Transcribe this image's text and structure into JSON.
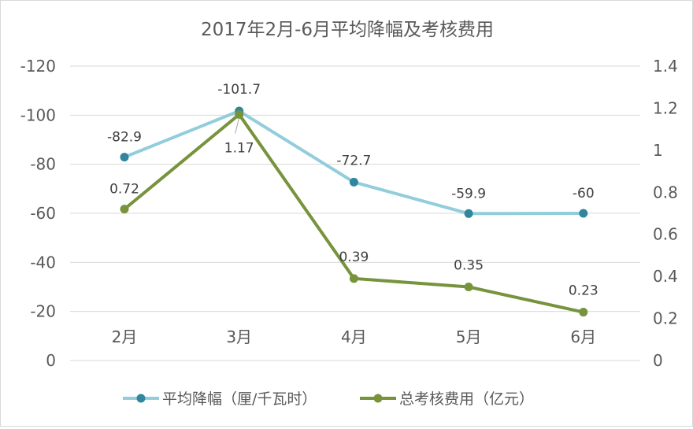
{
  "chart_data": {
    "type": "line",
    "title": "2017年2月-6月平均降幅及考核费用",
    "categories": [
      "2月",
      "3月",
      "4月",
      "5月",
      "6月"
    ],
    "series": [
      {
        "name": "平均降幅（厘/千瓦时）",
        "axis": "left",
        "values": [
          -82.9,
          -101.7,
          -72.7,
          -59.9,
          -60
        ],
        "labels": [
          "-82.9",
          "-101.7",
          "-72.7",
          "-59.9",
          "-60"
        ],
        "line_color": "#92CDDC",
        "marker_color": "#31859C"
      },
      {
        "name": "总考核费用（亿元）",
        "axis": "right",
        "values": [
          0.72,
          1.17,
          0.39,
          0.35,
          0.23
        ],
        "labels": [
          "0.72",
          "1.17",
          "0.39",
          "0.35",
          "0.23"
        ],
        "line_color": "#77933C",
        "marker_color": "#77933C"
      }
    ],
    "left_axis": {
      "ticks": [
        "-120",
        "-100",
        "-80",
        "-60",
        "-40",
        "-20",
        "0"
      ],
      "range": [
        0,
        -120
      ],
      "reversed": true
    },
    "right_axis": {
      "ticks": [
        "1.4",
        "1.2",
        "1",
        "0.8",
        "0.6",
        "0.4",
        "0.2",
        "0"
      ],
      "range": [
        0,
        1.4
      ]
    },
    "grid": true,
    "legend": "bottom"
  }
}
